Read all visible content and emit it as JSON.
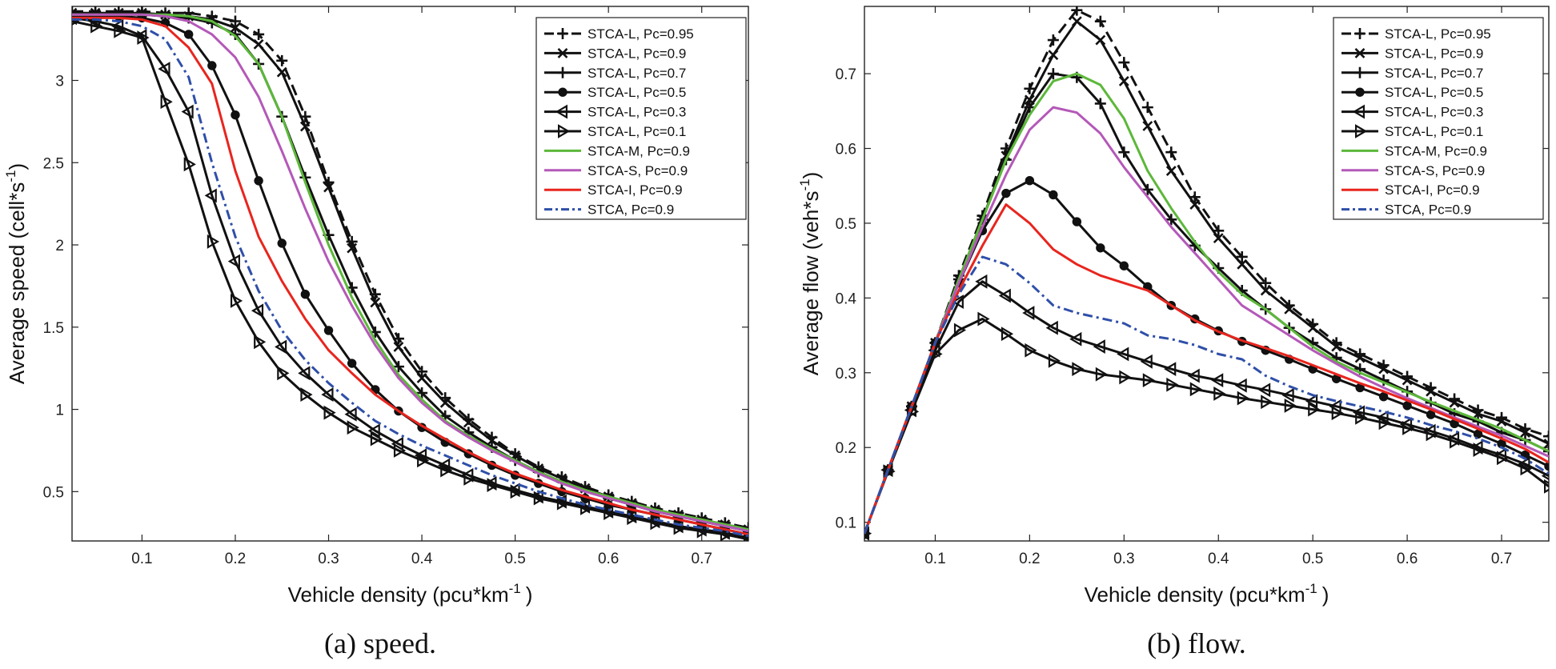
{
  "chart_data": [
    {
      "type": "line",
      "id": "speed",
      "caption": "(a) speed.",
      "xlabel": "Vehicle density  (pcu*km",
      "xlabel_sup": "-1",
      "xlabel_end": ")",
      "ylabel": "Average speed (cell*s",
      "ylabel_sup": "-1",
      "ylabel_end": ")",
      "xlim": [
        0.025,
        0.75
      ],
      "ylim": [
        0.2,
        3.45
      ],
      "xticks": [
        0.1,
        0.2,
        0.3,
        0.4,
        0.5,
        0.6,
        0.7
      ],
      "xtick_labels": [
        "0.1",
        "0.2",
        "0.3",
        "0.4",
        "0.5",
        "0.6",
        "0.7"
      ],
      "yticks": [
        0.5,
        1,
        1.5,
        2,
        2.5,
        3
      ],
      "ytick_labels": [
        "0.5",
        "1",
        "1.5",
        "2",
        "2.5",
        "3"
      ],
      "legend_position": "top-right",
      "x": [
        0.025,
        0.05,
        0.075,
        0.1,
        0.125,
        0.15,
        0.175,
        0.2,
        0.225,
        0.25,
        0.275,
        0.3,
        0.325,
        0.35,
        0.375,
        0.4,
        0.425,
        0.45,
        0.475,
        0.5,
        0.525,
        0.55,
        0.575,
        0.6,
        0.625,
        0.65,
        0.675,
        0.7,
        0.725,
        0.75
      ],
      "series": [
        {
          "name": "STCA-L, Pc=0.95",
          "color": "#111111",
          "dash": "dash",
          "marker": "plus",
          "values": [
            3.42,
            3.42,
            3.42,
            3.42,
            3.41,
            3.41,
            3.39,
            3.36,
            3.28,
            3.12,
            2.78,
            2.38,
            2.02,
            1.7,
            1.43,
            1.23,
            1.07,
            0.94,
            0.83,
            0.73,
            0.65,
            0.59,
            0.53,
            0.48,
            0.44,
            0.4,
            0.37,
            0.34,
            0.31,
            0.28
          ]
        },
        {
          "name": "STCA-L, Pc=0.9",
          "color": "#111111",
          "dash": "solid",
          "marker": "x",
          "values": [
            3.41,
            3.41,
            3.41,
            3.41,
            3.4,
            3.39,
            3.37,
            3.32,
            3.22,
            3.05,
            2.72,
            2.35,
            1.98,
            1.65,
            1.38,
            1.19,
            1.04,
            0.92,
            0.81,
            0.72,
            0.64,
            0.58,
            0.52,
            0.47,
            0.43,
            0.39,
            0.36,
            0.33,
            0.3,
            0.27
          ]
        },
        {
          "name": "STCA-L, Pc=0.7",
          "color": "#111111",
          "dash": "solid",
          "marker": "plus",
          "values": [
            3.4,
            3.4,
            3.4,
            3.4,
            3.39,
            3.38,
            3.35,
            3.28,
            3.1,
            2.78,
            2.41,
            2.06,
            1.74,
            1.47,
            1.26,
            1.1,
            0.96,
            0.86,
            0.77,
            0.69,
            0.62,
            0.56,
            0.51,
            0.46,
            0.42,
            0.38,
            0.35,
            0.32,
            0.29,
            0.26
          ]
        },
        {
          "name": "STCA-L, Pc=0.5",
          "color": "#111111",
          "dash": "solid",
          "marker": "circle",
          "values": [
            3.39,
            3.39,
            3.39,
            3.38,
            3.35,
            3.28,
            3.09,
            2.79,
            2.39,
            2.01,
            1.7,
            1.48,
            1.28,
            1.12,
            0.99,
            0.89,
            0.8,
            0.73,
            0.66,
            0.6,
            0.55,
            0.5,
            0.46,
            0.42,
            0.39,
            0.36,
            0.33,
            0.3,
            0.27,
            0.24
          ]
        },
        {
          "name": "STCA-L, Pc=0.3",
          "color": "#111111",
          "dash": "solid",
          "marker": "tri-left",
          "values": [
            3.38,
            3.36,
            3.33,
            3.27,
            3.07,
            2.81,
            2.3,
            1.9,
            1.6,
            1.38,
            1.22,
            1.09,
            0.97,
            0.87,
            0.79,
            0.72,
            0.66,
            0.6,
            0.55,
            0.51,
            0.47,
            0.44,
            0.41,
            0.38,
            0.35,
            0.32,
            0.29,
            0.27,
            0.25,
            0.22
          ]
        },
        {
          "name": "STCA-L, Pc=0.1",
          "color": "#111111",
          "dash": "solid",
          "marker": "tri-right",
          "values": [
            3.36,
            3.33,
            3.3,
            3.26,
            2.87,
            2.49,
            2.02,
            1.66,
            1.41,
            1.22,
            1.09,
            0.98,
            0.89,
            0.82,
            0.75,
            0.69,
            0.63,
            0.58,
            0.54,
            0.5,
            0.46,
            0.43,
            0.4,
            0.37,
            0.34,
            0.31,
            0.28,
            0.26,
            0.24,
            0.21
          ]
        },
        {
          "name": "STCA-M, Pc=0.9",
          "color": "#5cb83a",
          "dash": "solid",
          "marker": "none",
          "values": [
            3.4,
            3.4,
            3.4,
            3.4,
            3.4,
            3.39,
            3.36,
            3.27,
            3.1,
            2.78,
            2.38,
            2.0,
            1.68,
            1.42,
            1.21,
            1.06,
            0.93,
            0.84,
            0.76,
            0.69,
            0.62,
            0.56,
            0.51,
            0.47,
            0.43,
            0.39,
            0.36,
            0.33,
            0.3,
            0.27
          ]
        },
        {
          "name": "STCA-S, Pc=0.9",
          "color": "#b458b8",
          "dash": "solid",
          "marker": "none",
          "values": [
            3.4,
            3.4,
            3.4,
            3.4,
            3.39,
            3.36,
            3.28,
            3.14,
            2.9,
            2.57,
            2.22,
            1.9,
            1.63,
            1.39,
            1.19,
            1.04,
            0.92,
            0.83,
            0.75,
            0.68,
            0.61,
            0.55,
            0.5,
            0.46,
            0.42,
            0.38,
            0.35,
            0.32,
            0.29,
            0.26
          ]
        },
        {
          "name": "STCA-I, Pc=0.9",
          "color": "#e8251e",
          "dash": "solid",
          "marker": "none",
          "values": [
            3.38,
            3.38,
            3.38,
            3.37,
            3.33,
            3.2,
            2.98,
            2.45,
            2.05,
            1.78,
            1.55,
            1.36,
            1.22,
            1.09,
            0.99,
            0.9,
            0.82,
            0.74,
            0.67,
            0.61,
            0.56,
            0.51,
            0.47,
            0.43,
            0.39,
            0.36,
            0.33,
            0.3,
            0.27,
            0.24
          ]
        },
        {
          "name": "STCA, Pc=0.9",
          "color": "#2f4fa8",
          "dash": "dashdot",
          "marker": "none",
          "values": [
            3.37,
            3.37,
            3.36,
            3.33,
            3.25,
            3.02,
            2.5,
            2.05,
            1.72,
            1.48,
            1.3,
            1.16,
            1.04,
            0.93,
            0.85,
            0.78,
            0.72,
            0.66,
            0.6,
            0.55,
            0.5,
            0.46,
            0.42,
            0.39,
            0.36,
            0.33,
            0.3,
            0.28,
            0.26,
            0.23
          ]
        }
      ]
    },
    {
      "type": "line",
      "id": "flow",
      "caption": "(b) flow.",
      "xlabel": "Vehicle density  (pcu*km",
      "xlabel_sup": "-1",
      "xlabel_end": ")",
      "ylabel": "Average flow (veh*s",
      "ylabel_sup": "-1",
      "ylabel_end": ")",
      "xlim": [
        0.025,
        0.75
      ],
      "ylim": [
        0.075,
        0.79
      ],
      "xticks": [
        0.1,
        0.2,
        0.3,
        0.4,
        0.5,
        0.6,
        0.7
      ],
      "xtick_labels": [
        "0.1",
        "0.2",
        "0.3",
        "0.4",
        "0.5",
        "0.6",
        "0.7"
      ],
      "yticks": [
        0.1,
        0.2,
        0.3,
        0.4,
        0.5,
        0.6,
        0.7
      ],
      "ytick_labels": [
        "0.1",
        "0.2",
        "0.3",
        "0.4",
        "0.5",
        "0.6",
        "0.7"
      ],
      "legend_position": "top-right",
      "x": [
        0.025,
        0.05,
        0.075,
        0.1,
        0.125,
        0.15,
        0.175,
        0.2,
        0.225,
        0.25,
        0.275,
        0.3,
        0.325,
        0.35,
        0.375,
        0.4,
        0.425,
        0.45,
        0.475,
        0.5,
        0.525,
        0.55,
        0.575,
        0.6,
        0.625,
        0.65,
        0.675,
        0.7,
        0.725,
        0.75
      ],
      "series": [
        {
          "name": "STCA-L, Pc=0.95",
          "color": "#111111",
          "dash": "dash",
          "marker": "plus",
          "values": [
            0.085,
            0.17,
            0.255,
            0.34,
            0.43,
            0.51,
            0.6,
            0.68,
            0.745,
            0.785,
            0.77,
            0.715,
            0.655,
            0.595,
            0.535,
            0.49,
            0.455,
            0.42,
            0.39,
            0.365,
            0.34,
            0.325,
            0.31,
            0.295,
            0.28,
            0.265,
            0.25,
            0.24,
            0.225,
            0.215
          ]
        },
        {
          "name": "STCA-L, Pc=0.9",
          "color": "#111111",
          "dash": "solid",
          "marker": "x",
          "values": [
            0.085,
            0.17,
            0.255,
            0.34,
            0.425,
            0.505,
            0.59,
            0.665,
            0.725,
            0.77,
            0.745,
            0.69,
            0.63,
            0.57,
            0.525,
            0.48,
            0.445,
            0.41,
            0.385,
            0.36,
            0.335,
            0.32,
            0.305,
            0.29,
            0.275,
            0.26,
            0.245,
            0.235,
            0.22,
            0.205
          ]
        },
        {
          "name": "STCA-L, Pc=0.7",
          "color": "#111111",
          "dash": "solid",
          "marker": "plus",
          "values": [
            0.085,
            0.17,
            0.255,
            0.34,
            0.425,
            0.505,
            0.585,
            0.655,
            0.7,
            0.695,
            0.66,
            0.595,
            0.545,
            0.505,
            0.47,
            0.44,
            0.41,
            0.385,
            0.36,
            0.34,
            0.32,
            0.305,
            0.29,
            0.275,
            0.26,
            0.245,
            0.235,
            0.22,
            0.21,
            0.195
          ]
        },
        {
          "name": "STCA-L, Pc=0.5",
          "color": "#111111",
          "dash": "solid",
          "marker": "circle",
          "values": [
            0.085,
            0.17,
            0.255,
            0.34,
            0.42,
            0.49,
            0.54,
            0.557,
            0.538,
            0.502,
            0.467,
            0.443,
            0.415,
            0.39,
            0.372,
            0.356,
            0.342,
            0.33,
            0.318,
            0.305,
            0.292,
            0.28,
            0.268,
            0.256,
            0.244,
            0.232,
            0.218,
            0.205,
            0.19,
            0.175
          ]
        },
        {
          "name": "STCA-L, Pc=0.3",
          "color": "#111111",
          "dash": "solid",
          "marker": "tri-left",
          "values": [
            0.085,
            0.17,
            0.25,
            0.33,
            0.395,
            0.422,
            0.403,
            0.38,
            0.36,
            0.345,
            0.335,
            0.325,
            0.315,
            0.305,
            0.296,
            0.29,
            0.283,
            0.277,
            0.27,
            0.262,
            0.255,
            0.247,
            0.24,
            0.231,
            0.222,
            0.212,
            0.2,
            0.19,
            0.178,
            0.162
          ]
        },
        {
          "name": "STCA-L, Pc=0.1",
          "color": "#111111",
          "dash": "solid",
          "marker": "tri-right",
          "values": [
            0.085,
            0.168,
            0.248,
            0.325,
            0.357,
            0.372,
            0.352,
            0.33,
            0.316,
            0.305,
            0.298,
            0.294,
            0.29,
            0.284,
            0.278,
            0.272,
            0.266,
            0.261,
            0.256,
            0.251,
            0.246,
            0.24,
            0.233,
            0.226,
            0.218,
            0.208,
            0.197,
            0.186,
            0.172,
            0.148
          ]
        },
        {
          "name": "STCA-M, Pc=0.9",
          "color": "#5cb83a",
          "dash": "solid",
          "marker": "none",
          "values": [
            0.085,
            0.17,
            0.255,
            0.34,
            0.425,
            0.505,
            0.585,
            0.645,
            0.69,
            0.7,
            0.685,
            0.64,
            0.57,
            0.52,
            0.475,
            0.435,
            0.405,
            0.385,
            0.36,
            0.335,
            0.315,
            0.3,
            0.287,
            0.274,
            0.261,
            0.249,
            0.237,
            0.225,
            0.21,
            0.195
          ]
        },
        {
          "name": "STCA-S, Pc=0.9",
          "color": "#b458b8",
          "dash": "solid",
          "marker": "none",
          "values": [
            0.085,
            0.17,
            0.255,
            0.34,
            0.42,
            0.495,
            0.565,
            0.625,
            0.655,
            0.648,
            0.62,
            0.575,
            0.535,
            0.495,
            0.46,
            0.425,
            0.39,
            0.37,
            0.35,
            0.33,
            0.312,
            0.295,
            0.28,
            0.266,
            0.253,
            0.24,
            0.228,
            0.216,
            0.202,
            0.188
          ]
        },
        {
          "name": "STCA-I, Pc=0.9",
          "color": "#e8251e",
          "dash": "solid",
          "marker": "none",
          "values": [
            0.085,
            0.17,
            0.255,
            0.34,
            0.41,
            0.47,
            0.525,
            0.5,
            0.465,
            0.445,
            0.43,
            0.42,
            0.41,
            0.39,
            0.37,
            0.355,
            0.343,
            0.333,
            0.322,
            0.31,
            0.298,
            0.286,
            0.275,
            0.263,
            0.251,
            0.238,
            0.225,
            0.212,
            0.198,
            0.18
          ]
        },
        {
          "name": "STCA, Pc=0.9",
          "color": "#2f4fa8",
          "dash": "dashdot",
          "marker": "none",
          "values": [
            0.085,
            0.17,
            0.255,
            0.34,
            0.405,
            0.455,
            0.445,
            0.42,
            0.39,
            0.38,
            0.373,
            0.366,
            0.35,
            0.345,
            0.337,
            0.325,
            0.318,
            0.296,
            0.282,
            0.27,
            0.262,
            0.255,
            0.248,
            0.24,
            0.23,
            0.222,
            0.212,
            0.2,
            0.185,
            0.165
          ]
        }
      ]
    }
  ]
}
